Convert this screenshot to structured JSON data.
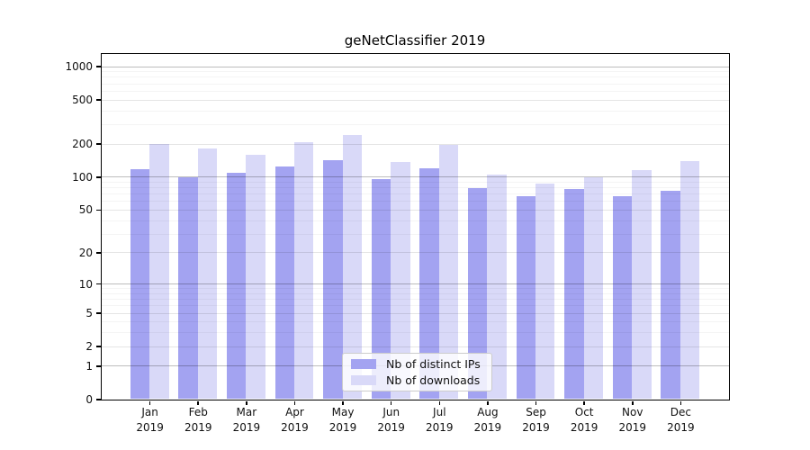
{
  "title": "geNetClassifier 2019",
  "legend": {
    "position": "lower center",
    "items": [
      {
        "label": "Nb of distinct IPs",
        "color": "#a3a3f1"
      },
      {
        "label": "Nb of downloads",
        "color": "#d9d9f8"
      }
    ]
  },
  "colors": {
    "bar_distinct_ips": "#a3a3f1",
    "bar_downloads": "#d9d9f8",
    "grid_major": "rgba(0,0,0,0.26)",
    "grid_mid": "rgba(0,0,0,0.10)",
    "grid_minor": "rgba(0,0,0,0.045)",
    "spine": "#000000",
    "text": "#111111",
    "background": "#ffffff"
  },
  "chart_data": {
    "type": "bar",
    "title": "geNetClassifier 2019",
    "categories": [
      "Jan 2019",
      "Feb 2019",
      "Mar 2019",
      "Apr 2019",
      "May 2019",
      "Jun 2019",
      "Jul 2019",
      "Aug 2019",
      "Sep 2019",
      "Oct 2019",
      "Nov 2019",
      "Dec 2019"
    ],
    "series": [
      {
        "name": "Nb of distinct IPs",
        "color": "#a3a3f1",
        "values": [
          116,
          98,
          109,
          123,
          142,
          95,
          120,
          79,
          67,
          78,
          67,
          75
        ]
      },
      {
        "name": "Nb of downloads",
        "color": "#d9d9f8",
        "values": [
          200,
          180,
          158,
          206,
          237,
          135,
          194,
          104,
          87,
          98,
          114,
          139
        ]
      }
    ],
    "xlabel": "",
    "ylabel": "",
    "yscale": "log1p",
    "yticks": [
      0,
      1,
      2,
      5,
      10,
      20,
      50,
      100,
      200,
      500,
      1000
    ],
    "ylim": [
      0,
      1300
    ],
    "grid": true,
    "legend_position": "lower center"
  }
}
